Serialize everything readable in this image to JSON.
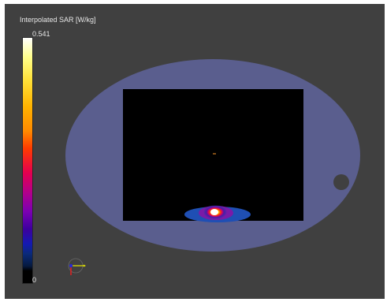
{
  "legend": {
    "title": "Interpolated SAR [W/kg]",
    "max_label": "0.541",
    "min_label": "0"
  },
  "colors": {
    "background": "#404040",
    "phantom": "#5a5e8e",
    "slice": "#000000",
    "hotspot": "#ffffff"
  },
  "icons": {
    "axes": "axes-orientation-icon",
    "coil_marker": "coil-marker-icon"
  }
}
